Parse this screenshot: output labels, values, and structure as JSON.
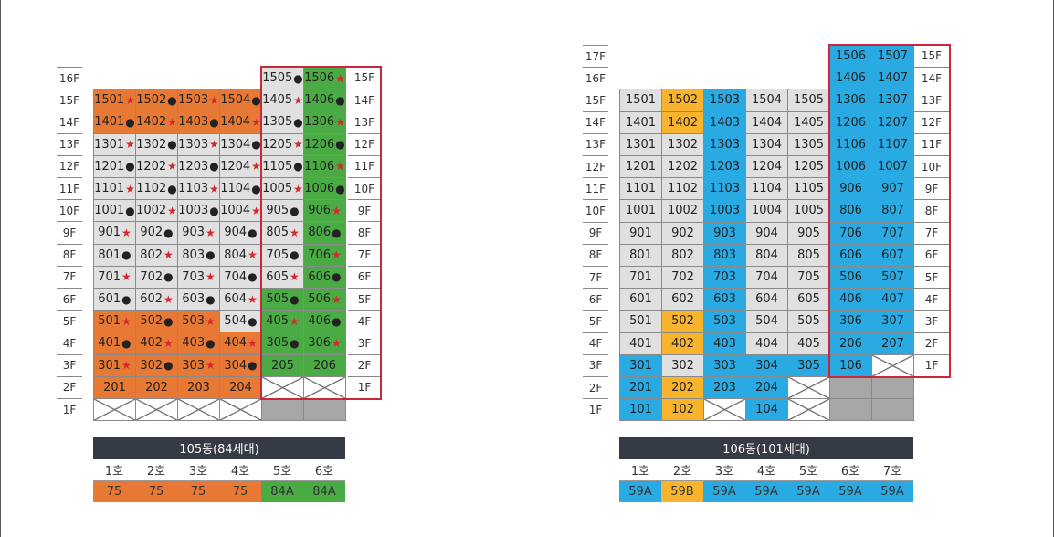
{
  "colors": {
    "orange": "#e87935",
    "green": "#4aaa44",
    "blue": "#2aaae2",
    "yellow": "#f8b42c",
    "gray": "#e0e0e0",
    "darkgray": "#a7a7a7",
    "red_outline": "#c8283a",
    "star": "#d8262e",
    "header": "#353a44"
  },
  "left": {
    "floors": [
      "16F",
      "15F",
      "14F",
      "13F",
      "12F",
      "11F",
      "10F",
      "9F",
      "8F",
      "7F",
      "6F",
      "5F",
      "4F",
      "3F",
      "2F",
      "1F"
    ],
    "right_floors": [
      "15F",
      "14F",
      "13F",
      "12F",
      "11F",
      "10F",
      "9F",
      "8F",
      "7F",
      "6F",
      "5F",
      "4F",
      "3F",
      "2F",
      "1F"
    ],
    "rows": [
      [
        null,
        null,
        null,
        null,
        {
          "t": "1505",
          "c": "gray",
          "m": "dot"
        },
        {
          "t": "1506",
          "c": "green",
          "m": "star"
        }
      ],
      [
        {
          "t": "1501",
          "c": "orange",
          "m": "star"
        },
        {
          "t": "1502",
          "c": "orange",
          "m": "dot"
        },
        {
          "t": "1503",
          "c": "orange",
          "m": "star"
        },
        {
          "t": "1504",
          "c": "orange",
          "m": "dot"
        },
        {
          "t": "1405",
          "c": "gray",
          "m": "star"
        },
        {
          "t": "1406",
          "c": "green",
          "m": "dot"
        }
      ],
      [
        {
          "t": "1401",
          "c": "orange",
          "m": "dot"
        },
        {
          "t": "1402",
          "c": "orange",
          "m": "star"
        },
        {
          "t": "1403",
          "c": "orange",
          "m": "dot"
        },
        {
          "t": "1404",
          "c": "orange",
          "m": "star"
        },
        {
          "t": "1305",
          "c": "gray",
          "m": "dot"
        },
        {
          "t": "1306",
          "c": "green",
          "m": "star"
        }
      ],
      [
        {
          "t": "1301",
          "c": "gray",
          "m": "star"
        },
        {
          "t": "1302",
          "c": "gray",
          "m": "dot"
        },
        {
          "t": "1303",
          "c": "gray",
          "m": "star"
        },
        {
          "t": "1304",
          "c": "gray",
          "m": "dot"
        },
        {
          "t": "1205",
          "c": "gray",
          "m": "star"
        },
        {
          "t": "1206",
          "c": "green",
          "m": "dot"
        }
      ],
      [
        {
          "t": "1201",
          "c": "gray",
          "m": "dot"
        },
        {
          "t": "1202",
          "c": "gray",
          "m": "star"
        },
        {
          "t": "1203",
          "c": "gray",
          "m": "dot"
        },
        {
          "t": "1204",
          "c": "gray",
          "m": "star"
        },
        {
          "t": "1105",
          "c": "gray",
          "m": "dot"
        },
        {
          "t": "1106",
          "c": "green",
          "m": "star"
        }
      ],
      [
        {
          "t": "1101",
          "c": "gray",
          "m": "star"
        },
        {
          "t": "1102",
          "c": "gray",
          "m": "dot"
        },
        {
          "t": "1103",
          "c": "gray",
          "m": "star"
        },
        {
          "t": "1104",
          "c": "gray",
          "m": "dot"
        },
        {
          "t": "1005",
          "c": "gray",
          "m": "star"
        },
        {
          "t": "1006",
          "c": "green",
          "m": "dot"
        }
      ],
      [
        {
          "t": "1001",
          "c": "gray",
          "m": "dot"
        },
        {
          "t": "1002",
          "c": "gray",
          "m": "star"
        },
        {
          "t": "1003",
          "c": "gray",
          "m": "dot"
        },
        {
          "t": "1004",
          "c": "gray",
          "m": "star"
        },
        {
          "t": "905",
          "c": "gray",
          "m": "dot"
        },
        {
          "t": "906",
          "c": "green",
          "m": "star"
        }
      ],
      [
        {
          "t": "901",
          "c": "gray",
          "m": "star"
        },
        {
          "t": "902",
          "c": "gray",
          "m": "dot"
        },
        {
          "t": "903",
          "c": "gray",
          "m": "star"
        },
        {
          "t": "904",
          "c": "gray",
          "m": "dot"
        },
        {
          "t": "805",
          "c": "gray",
          "m": "star"
        },
        {
          "t": "806",
          "c": "green",
          "m": "dot"
        }
      ],
      [
        {
          "t": "801",
          "c": "gray",
          "m": "dot"
        },
        {
          "t": "802",
          "c": "gray",
          "m": "star"
        },
        {
          "t": "803",
          "c": "gray",
          "m": "dot"
        },
        {
          "t": "804",
          "c": "gray",
          "m": "star"
        },
        {
          "t": "705",
          "c": "gray",
          "m": "dot"
        },
        {
          "t": "706",
          "c": "green",
          "m": "star"
        }
      ],
      [
        {
          "t": "701",
          "c": "gray",
          "m": "star"
        },
        {
          "t": "702",
          "c": "gray",
          "m": "dot"
        },
        {
          "t": "703",
          "c": "gray",
          "m": "star"
        },
        {
          "t": "704",
          "c": "gray",
          "m": "dot"
        },
        {
          "t": "605",
          "c": "gray",
          "m": "star"
        },
        {
          "t": "606",
          "c": "green",
          "m": "dot"
        }
      ],
      [
        {
          "t": "601",
          "c": "gray",
          "m": "dot"
        },
        {
          "t": "602",
          "c": "gray",
          "m": "star"
        },
        {
          "t": "603",
          "c": "gray",
          "m": "dot"
        },
        {
          "t": "604",
          "c": "gray",
          "m": "star"
        },
        {
          "t": "505",
          "c": "green",
          "m": "dot"
        },
        {
          "t": "506",
          "c": "green",
          "m": "star"
        }
      ],
      [
        {
          "t": "501",
          "c": "orange",
          "m": "star"
        },
        {
          "t": "502",
          "c": "orange",
          "m": "dot"
        },
        {
          "t": "503",
          "c": "orange",
          "m": "star"
        },
        {
          "t": "504",
          "c": "gray",
          "m": "dot"
        },
        {
          "t": "405",
          "c": "green",
          "m": "star"
        },
        {
          "t": "406",
          "c": "green",
          "m": "dot"
        }
      ],
      [
        {
          "t": "401",
          "c": "orange",
          "m": "dot"
        },
        {
          "t": "402",
          "c": "orange",
          "m": "star"
        },
        {
          "t": "403",
          "c": "orange",
          "m": "dot"
        },
        {
          "t": "404",
          "c": "orange",
          "m": "star"
        },
        {
          "t": "305",
          "c": "green",
          "m": "dot"
        },
        {
          "t": "306",
          "c": "green",
          "m": "star"
        }
      ],
      [
        {
          "t": "301",
          "c": "orange",
          "m": "star"
        },
        {
          "t": "302",
          "c": "orange",
          "m": "dot"
        },
        {
          "t": "303",
          "c": "orange",
          "m": "star"
        },
        {
          "t": "304",
          "c": "orange",
          "m": "dot"
        },
        {
          "t": "205",
          "c": "green",
          "m": ""
        },
        {
          "t": "206",
          "c": "green",
          "m": ""
        }
      ],
      [
        {
          "t": "201",
          "c": "orange",
          "m": ""
        },
        {
          "t": "202",
          "c": "orange",
          "m": ""
        },
        {
          "t": "203",
          "c": "orange",
          "m": ""
        },
        {
          "t": "204",
          "c": "orange",
          "m": ""
        },
        {
          "t": "",
          "c": "x",
          "m": ""
        },
        {
          "t": "",
          "c": "x",
          "m": ""
        }
      ],
      [
        {
          "t": "",
          "c": "x",
          "m": ""
        },
        {
          "t": "",
          "c": "x",
          "m": ""
        },
        {
          "t": "",
          "c": "x",
          "m": ""
        },
        {
          "t": "",
          "c": "x",
          "m": ""
        },
        {
          "t": "",
          "c": "darkgray",
          "m": ""
        },
        {
          "t": "",
          "c": "darkgray",
          "m": ""
        }
      ]
    ],
    "legend": {
      "title": "105동(84세대)",
      "ho": [
        "1호",
        "2호",
        "3호",
        "4호",
        "5호",
        "6호"
      ],
      "types": [
        "75",
        "75",
        "75",
        "75",
        "84A",
        "84A"
      ],
      "type_colors": [
        "orange",
        "orange",
        "orange",
        "orange",
        "green",
        "green"
      ]
    }
  },
  "right": {
    "floors": [
      "17F",
      "16F",
      "15F",
      "14F",
      "13F",
      "12F",
      "11F",
      "10F",
      "9F",
      "8F",
      "7F",
      "6F",
      "5F",
      "4F",
      "3F",
      "2F",
      "1F"
    ],
    "right_floors": [
      "15F",
      "14F",
      "13F",
      "12F",
      "11F",
      "10F",
      "9F",
      "8F",
      "7F",
      "6F",
      "5F",
      "4F",
      "3F",
      "2F",
      "1F"
    ],
    "rows": [
      [
        null,
        null,
        null,
        null,
        null,
        {
          "t": "1506",
          "c": "blue",
          "m": ""
        },
        {
          "t": "1507",
          "c": "blue",
          "m": ""
        }
      ],
      [
        null,
        null,
        null,
        null,
        null,
        {
          "t": "1406",
          "c": "blue",
          "m": ""
        },
        {
          "t": "1407",
          "c": "blue",
          "m": ""
        }
      ],
      [
        {
          "t": "1501",
          "c": "gray"
        },
        {
          "t": "1502",
          "c": "yellow"
        },
        {
          "t": "1503",
          "c": "blue"
        },
        {
          "t": "1504",
          "c": "gray"
        },
        {
          "t": "1505",
          "c": "gray"
        },
        {
          "t": "1306",
          "c": "blue"
        },
        {
          "t": "1307",
          "c": "blue"
        }
      ],
      [
        {
          "t": "1401",
          "c": "gray"
        },
        {
          "t": "1402",
          "c": "yellow"
        },
        {
          "t": "1403",
          "c": "blue"
        },
        {
          "t": "1404",
          "c": "gray"
        },
        {
          "t": "1405",
          "c": "gray"
        },
        {
          "t": "1206",
          "c": "blue"
        },
        {
          "t": "1207",
          "c": "blue"
        }
      ],
      [
        {
          "t": "1301",
          "c": "gray"
        },
        {
          "t": "1302",
          "c": "gray"
        },
        {
          "t": "1303",
          "c": "blue"
        },
        {
          "t": "1304",
          "c": "gray"
        },
        {
          "t": "1305",
          "c": "gray"
        },
        {
          "t": "1106",
          "c": "blue"
        },
        {
          "t": "1107",
          "c": "blue"
        }
      ],
      [
        {
          "t": "1201",
          "c": "gray"
        },
        {
          "t": "1202",
          "c": "gray"
        },
        {
          "t": "1203",
          "c": "blue"
        },
        {
          "t": "1204",
          "c": "gray"
        },
        {
          "t": "1205",
          "c": "gray"
        },
        {
          "t": "1006",
          "c": "blue"
        },
        {
          "t": "1007",
          "c": "blue"
        }
      ],
      [
        {
          "t": "1101",
          "c": "gray"
        },
        {
          "t": "1102",
          "c": "gray"
        },
        {
          "t": "1103",
          "c": "blue"
        },
        {
          "t": "1104",
          "c": "gray"
        },
        {
          "t": "1105",
          "c": "gray"
        },
        {
          "t": "906",
          "c": "blue"
        },
        {
          "t": "907",
          "c": "blue"
        }
      ],
      [
        {
          "t": "1001",
          "c": "gray"
        },
        {
          "t": "1002",
          "c": "gray"
        },
        {
          "t": "1003",
          "c": "blue"
        },
        {
          "t": "1004",
          "c": "gray"
        },
        {
          "t": "1005",
          "c": "gray"
        },
        {
          "t": "806",
          "c": "blue"
        },
        {
          "t": "807",
          "c": "blue"
        }
      ],
      [
        {
          "t": "901",
          "c": "gray"
        },
        {
          "t": "902",
          "c": "gray"
        },
        {
          "t": "903",
          "c": "blue"
        },
        {
          "t": "904",
          "c": "gray"
        },
        {
          "t": "905",
          "c": "gray"
        },
        {
          "t": "706",
          "c": "blue"
        },
        {
          "t": "707",
          "c": "blue"
        }
      ],
      [
        {
          "t": "801",
          "c": "gray"
        },
        {
          "t": "802",
          "c": "gray"
        },
        {
          "t": "803",
          "c": "blue"
        },
        {
          "t": "804",
          "c": "gray"
        },
        {
          "t": "805",
          "c": "gray"
        },
        {
          "t": "606",
          "c": "blue"
        },
        {
          "t": "607",
          "c": "blue"
        }
      ],
      [
        {
          "t": "701",
          "c": "gray"
        },
        {
          "t": "702",
          "c": "gray"
        },
        {
          "t": "703",
          "c": "blue"
        },
        {
          "t": "704",
          "c": "gray"
        },
        {
          "t": "705",
          "c": "gray"
        },
        {
          "t": "506",
          "c": "blue"
        },
        {
          "t": "507",
          "c": "blue"
        }
      ],
      [
        {
          "t": "601",
          "c": "gray"
        },
        {
          "t": "602",
          "c": "gray"
        },
        {
          "t": "603",
          "c": "blue"
        },
        {
          "t": "604",
          "c": "gray"
        },
        {
          "t": "605",
          "c": "gray"
        },
        {
          "t": "406",
          "c": "blue"
        },
        {
          "t": "407",
          "c": "blue"
        }
      ],
      [
        {
          "t": "501",
          "c": "gray"
        },
        {
          "t": "502",
          "c": "yellow"
        },
        {
          "t": "503",
          "c": "blue"
        },
        {
          "t": "504",
          "c": "gray"
        },
        {
          "t": "505",
          "c": "gray"
        },
        {
          "t": "306",
          "c": "blue"
        },
        {
          "t": "307",
          "c": "blue"
        }
      ],
      [
        {
          "t": "401",
          "c": "gray"
        },
        {
          "t": "402",
          "c": "yellow"
        },
        {
          "t": "403",
          "c": "blue"
        },
        {
          "t": "404",
          "c": "gray"
        },
        {
          "t": "405",
          "c": "gray"
        },
        {
          "t": "206",
          "c": "blue"
        },
        {
          "t": "207",
          "c": "blue"
        }
      ],
      [
        {
          "t": "301",
          "c": "blue"
        },
        {
          "t": "302",
          "c": "gray"
        },
        {
          "t": "303",
          "c": "blue"
        },
        {
          "t": "304",
          "c": "blue"
        },
        {
          "t": "305",
          "c": "blue"
        },
        {
          "t": "106",
          "c": "blue"
        },
        {
          "t": "",
          "c": "x"
        }
      ],
      [
        {
          "t": "201",
          "c": "blue"
        },
        {
          "t": "202",
          "c": "yellow"
        },
        {
          "t": "203",
          "c": "blue"
        },
        {
          "t": "204",
          "c": "blue"
        },
        {
          "t": "",
          "c": "x"
        },
        {
          "t": "",
          "c": "darkgray"
        },
        {
          "t": "",
          "c": "darkgray"
        }
      ],
      [
        {
          "t": "101",
          "c": "blue"
        },
        {
          "t": "102",
          "c": "yellow"
        },
        {
          "t": "",
          "c": "x"
        },
        {
          "t": "104",
          "c": "blue"
        },
        {
          "t": "",
          "c": "x"
        },
        {
          "t": "",
          "c": "darkgray"
        },
        {
          "t": "",
          "c": "darkgray"
        }
      ]
    ],
    "legend": {
      "title": "106동(101세대)",
      "ho": [
        "1호",
        "2호",
        "3호",
        "4호",
        "5호",
        "6호",
        "7호"
      ],
      "types": [
        "59A",
        "59B",
        "59A",
        "59A",
        "59A",
        "59A",
        "59A"
      ],
      "type_colors": [
        "blue",
        "yellow",
        "blue",
        "blue",
        "blue",
        "blue",
        "blue"
      ]
    }
  }
}
